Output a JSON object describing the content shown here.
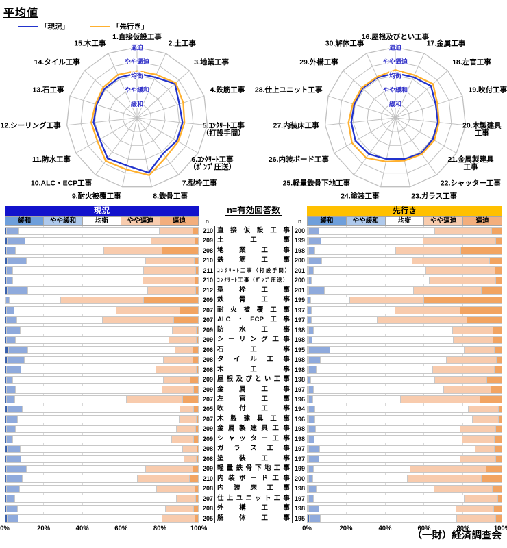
{
  "title": "平均値",
  "legend": {
    "current": "「現況」",
    "outlook": "「先行き」"
  },
  "header_current": "現況",
  "header_outlook": "先行き",
  "mid_header": "n=有効回答数",
  "n_label": "n",
  "credit": "（一財）経済調査会",
  "scale_labels": [
    "緩和",
    "やや緩和",
    "均衡",
    "やや逼迫",
    "逼迫"
  ],
  "x_ticks": [
    "0%",
    "20%",
    "40%",
    "60%",
    "80%",
    "100%"
  ],
  "colors": {
    "current_line": "#2233CC",
    "outlook_line": "#FFB02E",
    "header_current_bg": "#1212CC",
    "header_current_fg": "#FFFFFF",
    "header_outlook_bg": "#FFC000",
    "header_outlook_fg": "#000000",
    "ring_label": "#3030C8",
    "grid": "#C0C0C0",
    "seg_colors": [
      "#3A61AD",
      "#8FAADC",
      "#FFFFFF",
      "#F8CBAD",
      "#F2A462"
    ],
    "legend_colors": [
      "#6E9FDB",
      "#AEC9EC",
      "#FFFFFF",
      "#F8CCAE",
      "#F3AE7C"
    ]
  },
  "chart_data": [
    {
      "type": "radar",
      "name": "trades-1-15",
      "rings": [
        "緩和",
        "やや緩和",
        "均衡",
        "やや逼迫",
        "逼迫"
      ],
      "axis_range": [
        1,
        5
      ],
      "labels": [
        "1.直接仮設工事",
        "2.土工事",
        "3.地業工事",
        "4.鉄筋工事",
        "5.ｺﾝｸﾘｰﾄ工事\n（打設手間）",
        "6.ｺﾝｸﾘｰﾄ工事\n（ﾎﾟﾝﾌﾟ圧送）",
        "7.型枠工事",
        "8.鉄骨工事",
        "9.耐火被覆工事",
        "10.ALC・ECP工事",
        "11.防水工事",
        "12.シーリング工事",
        "13.石工事",
        "14.タイル工事",
        "15.木工事"
      ],
      "series": [
        {
          "name": "現況",
          "values": [
            3.15,
            3.14,
            3.61,
            3.15,
            3.24,
            3.25,
            3.14,
            3.97,
            3.46,
            3.55,
            3.05,
            3.1,
            3.01,
            3.09,
            3.13
          ]
        },
        {
          "name": "先行き",
          "values": [
            3.32,
            3.35,
            3.7,
            3.44,
            3.38,
            3.37,
            3.46,
            4.16,
            3.73,
            3.78,
            3.25,
            3.26,
            3.1,
            3.23,
            3.34
          ]
        }
      ]
    },
    {
      "type": "radar",
      "name": "trades-16-30",
      "rings": [
        "緩和",
        "やや緩和",
        "均衡",
        "やや逼迫",
        "逼迫"
      ],
      "axis_range": [
        1,
        5
      ],
      "labels": [
        "16.屋根及びとい工事",
        "17.金属工事",
        "18.左官工事",
        "19.吹付工事",
        "20.木製建具\n工事",
        "21.金属製建具\n工事",
        "22.シャッター工事",
        "23.ガラス工事",
        "24.塗装工事",
        "25.軽量鉄骨下地工事",
        "26.内装ボード工事",
        "27.内装床工事",
        "28.仕上ユニット工事",
        "29.外構工事",
        "30.解体工事"
      ],
      "series": [
        {
          "name": "現況",
          "values": [
            3.17,
            3.15,
            3.39,
            3.01,
            3.03,
            3.06,
            3.11,
            2.99,
            2.99,
            3.18,
            3.26,
            3.14,
            3.06,
            3.12,
            3.12
          ]
        },
        {
          "name": "先行き",
          "values": [
            3.39,
            3.31,
            3.59,
            3.14,
            3.11,
            3.19,
            3.19,
            3.1,
            3.17,
            3.51,
            3.55,
            3.34,
            3.17,
            3.2,
            3.18
          ]
        }
      ]
    },
    {
      "type": "bar",
      "stacked": true,
      "orientation": "horizontal",
      "unit": "%",
      "segments": [
        "緩和",
        "やや緩和",
        "均衡",
        "やや逼迫",
        "逼迫"
      ],
      "x_ticks": [
        "0%",
        "20%",
        "40%",
        "60%",
        "80%",
        "100%"
      ],
      "rows": [
        {
          "label": "直接仮設工事",
          "n_current": 210,
          "n_outlook": 200,
          "current": [
            1,
            6.4,
            72.4,
            17.3,
            2.9
          ],
          "outlook": [
            1,
            5.4,
            59.2,
            29,
            5.4
          ]
        },
        {
          "label": "土工事",
          "n_current": 209,
          "n_outlook": 199,
          "current": [
            1.5,
            9,
            65.2,
            22.6,
            1.7
          ],
          "outlook": [
            1,
            6.4,
            52.4,
            37.2,
            3
          ]
        },
        {
          "label": "地業工事",
          "n_current": 208,
          "n_outlook": 198,
          "current": [
            1,
            4.5,
            45.9,
            29.7,
            18.9
          ],
          "outlook": [
            1,
            3.3,
            41.2,
            33.6,
            20.9
          ]
        },
        {
          "label": "鉄筋工事",
          "n_current": 210,
          "n_outlook": 200,
          "current": [
            1.5,
            9.9,
            61.4,
            25.2,
            2
          ],
          "outlook": [
            1,
            6.7,
            46.2,
            39.8,
            6.3
          ]
        },
        {
          "label": "ｺﾝｸﾘｰﾄ工事（打設手間）",
          "n_current": 211,
          "n_outlook": 201,
          "current": [
            1,
            3.3,
            67.6,
            26.6,
            1.5
          ],
          "outlook": [
            1,
            2.6,
            57.6,
            35.4,
            3.4
          ]
        },
        {
          "label": "ｺﾝｸﾘｰﾄ工事（ﾎﾟﾝﾌﾟ圧送）",
          "n_current": 210,
          "n_outlook": 200,
          "current": [
            1,
            3.3,
            67,
            26.9,
            1.8
          ],
          "outlook": [
            1,
            1.5,
            60.2,
            34.3,
            3
          ]
        },
        {
          "label": "型枠工事",
          "n_current": 212,
          "n_outlook": 201,
          "current": [
            1.5,
            10.5,
            62,
            24.5,
            1.5
          ],
          "outlook": [
            1,
            8,
            45.9,
            34.7,
            10.4
          ]
        },
        {
          "label": "鉄骨工事",
          "n_current": 209,
          "n_outlook": 199,
          "current": [
            0.5,
            1.7,
            26.5,
            43,
            28.3
          ],
          "outlook": [
            0.5,
            1.3,
            20.2,
            37.8,
            40.2
          ]
        },
        {
          "label": "耐火被覆工事",
          "n_current": 207,
          "n_outlook": 197,
          "current": [
            1,
            4,
            52.5,
            33,
            9.5
          ],
          "outlook": [
            0.8,
            1.7,
            42.6,
            33.4,
            21.5
          ]
        },
        {
          "label": "ALC・ECP工事",
          "n_current": 207,
          "n_outlook": 197,
          "current": [
            1,
            5.5,
            44.1,
            36.7,
            12.7
          ],
          "outlook": [
            0.8,
            1.7,
            33.6,
            46.1,
            17.8
          ]
        },
        {
          "label": "防水工事",
          "n_current": 209,
          "n_outlook": 198,
          "current": [
            1,
            7,
            78.6,
            12.4,
            1
          ],
          "outlook": [
            1,
            2.6,
            71.1,
            20.7,
            4.6
          ]
        },
        {
          "label": "シーリング工事",
          "n_current": 209,
          "n_outlook": 198,
          "current": [
            1,
            4.8,
            78.9,
            14.2,
            1.1
          ],
          "outlook": [
            1,
            1.7,
            72.5,
            20.2,
            4.6
          ]
        },
        {
          "label": "石工事",
          "n_current": 206,
          "n_outlook": 195,
          "current": [
            2,
            10,
            76,
            9,
            3
          ],
          "outlook": [
            1,
            10.8,
            69,
            15.5,
            3.7
          ]
        },
        {
          "label": "タイル工事",
          "n_current": 208,
          "n_outlook": 198,
          "current": [
            1.5,
            8.7,
            71.9,
            15,
            2.9
          ],
          "outlook": [
            1,
            6.1,
            64.6,
            25.5,
            2.8
          ]
        },
        {
          "label": "木工事",
          "n_current": 208,
          "n_outlook": 198,
          "current": [
            1,
            7.4,
            69.8,
            20.8,
            1
          ],
          "outlook": [
            1,
            4,
            59.4,
            31.6,
            4
          ]
        },
        {
          "label": "屋根及びとい工事",
          "n_current": 209,
          "n_outlook": 198,
          "current": [
            1,
            3.3,
            77.8,
            13.8,
            4.1
          ],
          "outlook": [
            0.8,
            1.4,
            63.4,
            26.6,
            7.8
          ]
        },
        {
          "label": "金属工事",
          "n_current": 209,
          "n_outlook": 197,
          "current": [
            1,
            4.5,
            75.9,
            16.2,
            2.4
          ],
          "outlook": [
            1,
            2.4,
            66.7,
            24.2,
            5.7
          ]
        },
        {
          "label": "左官工事",
          "n_current": 207,
          "n_outlook": 196,
          "current": [
            1,
            4.3,
            57.7,
            28.8,
            8.2
          ],
          "outlook": [
            1,
            2,
            45.1,
            40.7,
            11.2
          ]
        },
        {
          "label": "吹付工事",
          "n_current": 205,
          "n_outlook": 194,
          "current": [
            1.5,
            7.8,
            81.3,
            7,
            2.4
          ],
          "outlook": [
            1,
            3.1,
            78.8,
            15.5,
            1.6
          ]
        },
        {
          "label": "木製建具工事",
          "n_current": 207,
          "n_outlook": 196,
          "current": [
            1,
            5.7,
            83.3,
            9,
            1
          ],
          "outlook": [
            1,
            3.3,
            80.6,
            13.5,
            1.6
          ]
        },
        {
          "label": "金属製建具工事",
          "n_current": 209,
          "n_outlook": 198,
          "current": [
            1,
            4.8,
            83,
            9.7,
            1.5
          ],
          "outlook": [
            1,
            3.6,
            73.9,
            18.5,
            3
          ]
        },
        {
          "label": "シャッター工事",
          "n_current": 209,
          "n_outlook": 198,
          "current": [
            1,
            3.3,
            81.8,
            11.3,
            2.6
          ],
          "outlook": [
            1,
            2.9,
            75.7,
            16.7,
            3.7
          ]
        },
        {
          "label": "ガラス工事",
          "n_current": 208,
          "n_outlook": 197,
          "current": [
            1.5,
            6.6,
            83.7,
            7.5,
            0.7
          ],
          "outlook": [
            1,
            5.7,
            79.7,
            9.9,
            3.7
          ]
        },
        {
          "label": "塗装工事",
          "n_current": 208,
          "n_outlook": 197,
          "current": [
            1,
            7.6,
            84.1,
            6.3,
            1
          ],
          "outlook": [
            1,
            5.4,
            72.1,
            18.5,
            3
          ]
        },
        {
          "label": "軽量鉄骨下地工事",
          "n_current": 209,
          "n_outlook": 199,
          "current": [
            1,
            10.4,
            61.5,
            24.2,
            2.9
          ],
          "outlook": [
            1,
            2.6,
            49.4,
            38.9,
            8.1
          ]
        },
        {
          "label": "内装ボード工事",
          "n_current": 210,
          "n_outlook": 200,
          "current": [
            1,
            8.3,
            59.1,
            27.1,
            4.5
          ],
          "outlook": [
            1,
            2.2,
            48.4,
            38,
            10.4
          ]
        },
        {
          "label": "内装床工事",
          "n_current": 208,
          "n_outlook": 198,
          "current": [
            1,
            6.9,
            70.7,
            19.6,
            1.8
          ],
          "outlook": [
            1,
            4,
            60.4,
            29.7,
            4.9
          ]
        },
        {
          "label": "仕上ユニット工事",
          "n_current": 207,
          "n_outlook": 197,
          "current": [
            1,
            4.3,
            83.5,
            9.7,
            1.5
          ],
          "outlook": [
            1,
            2.6,
            77.2,
            17,
            2.2
          ]
        },
        {
          "label": "外構工事",
          "n_current": 208,
          "n_outlook": 198,
          "current": [
            1,
            5.7,
            76.2,
            14.6,
            2.5
          ],
          "outlook": [
            1,
            5.4,
            70,
            19.4,
            4.2
          ]
        },
        {
          "label": "解体工事",
          "n_current": 205,
          "n_outlook": 195,
          "current": [
            1.5,
            5.7,
            74.2,
            17,
            1.6
          ],
          "outlook": [
            1.5,
            5.4,
            69.8,
            20.1,
            3.2
          ]
        }
      ]
    }
  ]
}
